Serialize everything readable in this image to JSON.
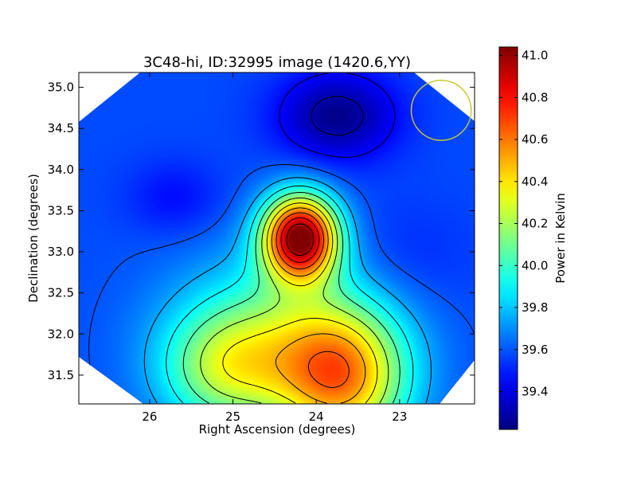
{
  "chart_data": {
    "type": "heatmap",
    "title": "3C48-hi, ID:32995 image (1420.6,YY)",
    "xlabel": "Right Ascension (degrees)",
    "ylabel": "Declination (degrees)",
    "xlim": [
      26.85,
      22.1
    ],
    "ylim": [
      31.15,
      35.18
    ],
    "x_ticks": [
      "26",
      "25",
      "24",
      "23"
    ],
    "x_tick_values": [
      26,
      25,
      24,
      23
    ],
    "y_ticks": [
      "31.5",
      "32.0",
      "32.5",
      "33.0",
      "33.5",
      "34.0",
      "34.5",
      "35.0"
    ],
    "y_tick_values": [
      31.5,
      32.0,
      32.5,
      33.0,
      33.5,
      34.0,
      34.5,
      35.0
    ],
    "colorbar": {
      "label": "Power in Kelvin",
      "range": [
        39.22,
        41.04
      ],
      "ticks": [
        "39.4",
        "39.6",
        "39.8",
        "40.0",
        "40.2",
        "40.4",
        "40.6",
        "40.8",
        "41.0"
      ],
      "tick_values": [
        39.4,
        39.6,
        39.8,
        40.0,
        40.2,
        40.4,
        40.6,
        40.8,
        41.0
      ],
      "colormap": "jet"
    },
    "background_level": 39.58,
    "sources": [
      {
        "ra": 24.19,
        "dec": 33.18,
        "peak": 41.02,
        "sigma_ra": 0.32,
        "sigma_dec": 0.36
      },
      {
        "ra": 23.7,
        "dec": 31.45,
        "peak": 40.42,
        "sigma_ra": 0.55,
        "sigma_dec": 0.6
      },
      {
        "ra": 24.4,
        "dec": 32.0,
        "peak": 40.02,
        "sigma_ra": 0.9,
        "sigma_dec": 0.7
      },
      {
        "ra": 25.1,
        "dec": 31.55,
        "peak": 40.05,
        "sigma_ra": 0.55,
        "sigma_dec": 0.5
      }
    ],
    "minima": [
      {
        "ra": 23.75,
        "dec": 34.65,
        "depth": 0.34,
        "sigma_ra": 0.5,
        "sigma_dec": 0.38
      },
      {
        "ra": 25.7,
        "dec": 33.65,
        "depth": 0.12,
        "sigma_ra": 0.4,
        "sigma_dec": 0.32
      },
      {
        "ra": 23.0,
        "dec": 32.9,
        "depth": 0.08,
        "sigma_ra": 0.6,
        "sigma_dec": 0.5
      }
    ],
    "contour_levels": [
      39.3,
      39.45,
      39.6,
      39.75,
      39.9,
      40.05,
      40.2,
      40.35,
      40.5,
      40.65,
      40.8,
      40.95
    ],
    "beam_circle": {
      "ra": 22.5,
      "dec": 34.72,
      "radius": 0.36,
      "color": "#c8c832"
    },
    "grid": false
  }
}
